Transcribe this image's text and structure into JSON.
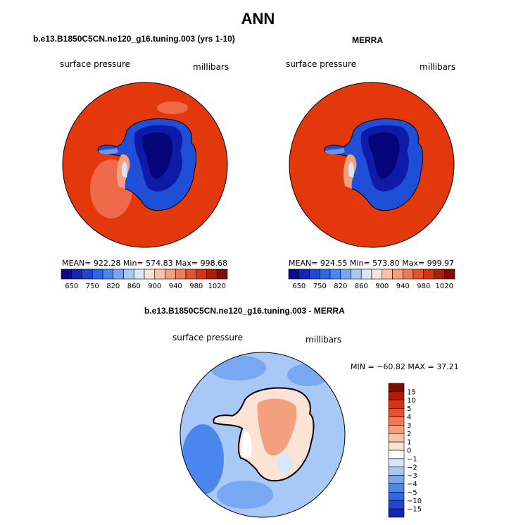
{
  "title": "ANN",
  "panels": [
    {
      "title": "b.e13.B1850C5CN.ne120_g16.tuning.003 (yrs 1-10)",
      "left_label": "surface pressure",
      "right_label": "millibars",
      "stats": "MEAN= 922.28   Min= 574.83   Max= 998.68"
    },
    {
      "title": "MERRA",
      "left_label": "surface pressure",
      "right_label": "millibars",
      "stats": "MEAN= 924.55   Min= 573.80   Max= 999.97"
    },
    {
      "title": "b.e13.B1850C5CN.ne120_g16.tuning.003 - MERRA",
      "left_label": "surface pressure",
      "right_label": "millibars",
      "stats": "MIN = −60.82  MAX =   37.21"
    }
  ],
  "chart_data": [
    {
      "type": "heatmap",
      "title": "b.e13.B1850C5CN.ne120_g16.tuning.003 (yrs 1-10)",
      "variable": "surface pressure",
      "units": "millibars",
      "mean": 922.28,
      "min": 574.83,
      "max": 998.68,
      "colorbar_tick_labels": [
        "650",
        "750",
        "820",
        "860",
        "900",
        "940",
        "980",
        "1020"
      ],
      "colorbar_colors": [
        "#0a0a8a",
        "#1426b4",
        "#1e46d2",
        "#2e66e6",
        "#4a86ee",
        "#78a8f2",
        "#a8c8f6",
        "#d8e6fa",
        "#fbe3d6",
        "#f8c4a8",
        "#f4a07e",
        "#ee7a56",
        "#e4522e",
        "#d43412",
        "#b01c0a",
        "#7e0c04"
      ]
    },
    {
      "type": "heatmap",
      "title": "MERRA",
      "variable": "surface pressure",
      "units": "millibars",
      "mean": 924.55,
      "min": 573.8,
      "max": 999.97,
      "colorbar_tick_labels": [
        "650",
        "750",
        "820",
        "860",
        "900",
        "940",
        "980",
        "1020"
      ],
      "colorbar_colors": [
        "#0a0a8a",
        "#1426b4",
        "#1e46d2",
        "#2e66e6",
        "#4a86ee",
        "#78a8f2",
        "#a8c8f6",
        "#d8e6fa",
        "#fbe3d6",
        "#f8c4a8",
        "#f4a07e",
        "#ee7a56",
        "#e4522e",
        "#d43412",
        "#b01c0a",
        "#7e0c04"
      ]
    },
    {
      "type": "heatmap",
      "title": "b.e13.B1850C5CN.ne120_g16.tuning.003 - MERRA",
      "variable": "surface pressure",
      "units": "millibars",
      "min": -60.82,
      "max": 37.21,
      "colorbar_tick_labels": [
        "15",
        "10",
        "5",
        "4",
        "3",
        "2",
        "1",
        "0",
        "−1",
        "−2",
        "−3",
        "−4",
        "−5",
        "−10",
        "−15"
      ],
      "colorbar_colors": [
        "#7e0c04",
        "#b01c0a",
        "#d43412",
        "#e4522e",
        "#ee7a56",
        "#f4a07e",
        "#f8c4a8",
        "#fbe3d6",
        "#ffffff",
        "#d8e6fa",
        "#a8c8f6",
        "#78a8f2",
        "#4a86ee",
        "#2e66e6",
        "#1e46d2",
        "#1426b4"
      ]
    }
  ]
}
